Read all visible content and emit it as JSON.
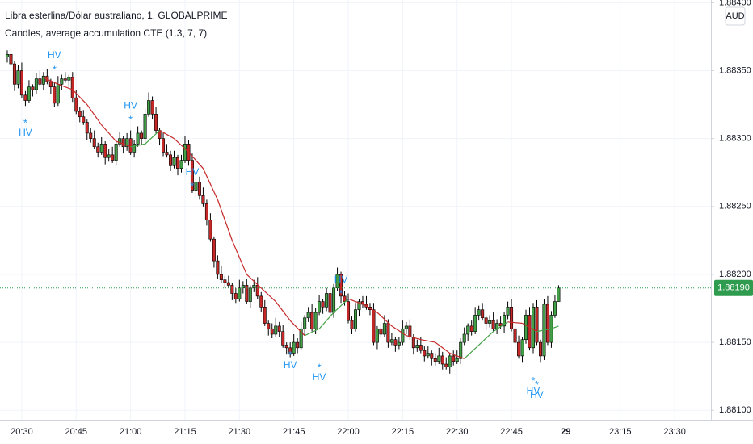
{
  "chart_data": {
    "type": "candlestick",
    "title": "Libra esterlina/Dólar australiano, 1, GLOBALPRIME",
    "subtitle": "Candles, average accumulation CTE (1.3, 7, 7)",
    "currency": "AUD",
    "up_color": "#43a047",
    "down_color": "#c62828",
    "grid": true,
    "xlim": [
      "20:24",
      "23:40"
    ],
    "xticks": [
      "20:30",
      "20:45",
      "21:00",
      "21:15",
      "21:30",
      "21:45",
      "22:00",
      "22:15",
      "22:30",
      "22:45",
      {
        "value": "23:00",
        "label": "29"
      },
      "23:15",
      "23:30"
    ],
    "ylim": [
      1.88093,
      1.88402
    ],
    "yticks": [
      {
        "value": 1.881,
        "label": "1.88100"
      },
      {
        "value": 1.8815,
        "label": "1.88150"
      },
      {
        "value": 1.882,
        "label": "1.88200"
      },
      {
        "value": 1.8825,
        "label": "1.88250"
      },
      {
        "value": 1.883,
        "label": "1.88300"
      },
      {
        "value": 1.8835,
        "label": "1.88350"
      },
      {
        "value": 1.884,
        "label": "1.88400"
      }
    ],
    "last_price": {
      "value": 1.8819,
      "label": "1.88190"
    },
    "last_price_color": "#2e9b4e",
    "x": [
      "20:26",
      "20:27",
      "20:28",
      "20:29",
      "20:30",
      "20:31",
      "20:32",
      "20:33",
      "20:34",
      "20:35",
      "20:36",
      "20:37",
      "20:38",
      "20:39",
      "20:40",
      "20:41",
      "20:42",
      "20:43",
      "20:44",
      "20:45",
      "20:46",
      "20:47",
      "20:48",
      "20:49",
      "20:50",
      "20:51",
      "20:52",
      "20:53",
      "20:54",
      "20:55",
      "20:56",
      "20:57",
      "20:58",
      "20:59",
      "21:00",
      "21:01",
      "21:02",
      "21:03",
      "21:04",
      "21:05",
      "21:06",
      "21:07",
      "21:08",
      "21:09",
      "21:10",
      "21:11",
      "21:12",
      "21:13",
      "21:14",
      "21:15",
      "21:16",
      "21:17",
      "21:18",
      "21:19",
      "21:20",
      "21:21",
      "21:22",
      "21:23",
      "21:24",
      "21:25",
      "21:26",
      "21:27",
      "21:28",
      "21:29",
      "21:30",
      "21:31",
      "21:32",
      "21:33",
      "21:34",
      "21:35",
      "21:36",
      "21:37",
      "21:38",
      "21:39",
      "21:40",
      "21:41",
      "21:42",
      "21:43",
      "21:44",
      "21:45",
      "21:46",
      "21:47",
      "21:48",
      "21:49",
      "21:50",
      "21:51",
      "21:52",
      "21:53",
      "21:54",
      "21:55",
      "21:56",
      "21:57",
      "21:58",
      "21:59",
      "22:00",
      "22:01",
      "22:02",
      "22:03",
      "22:04",
      "22:05",
      "22:06",
      "22:07",
      "22:08",
      "22:09",
      "22:10",
      "22:11",
      "22:12",
      "22:13",
      "22:14",
      "22:15",
      "22:16",
      "22:17",
      "22:18",
      "22:19",
      "22:20",
      "22:21",
      "22:22",
      "22:23",
      "22:24",
      "22:25",
      "22:26",
      "22:27",
      "22:28",
      "22:29",
      "22:30",
      "22:31",
      "22:32",
      "22:33",
      "22:34",
      "22:35",
      "22:36",
      "22:37",
      "22:38",
      "22:39",
      "22:40",
      "22:41",
      "22:42",
      "22:43",
      "22:44",
      "22:45",
      "22:46",
      "22:47",
      "22:48",
      "22:49",
      "22:50",
      "22:51",
      "22:52",
      "22:53",
      "22:54",
      "22:55",
      "22:56",
      "22:57",
      "22:58"
    ],
    "open": [
      1.8836,
      1.88362,
      1.88355,
      1.8834,
      1.8835,
      1.88332,
      1.88328,
      1.88338,
      1.88336,
      1.88344,
      1.8834,
      1.88346,
      1.88342,
      1.88338,
      1.88326,
      1.8834,
      1.88344,
      1.88343,
      1.88345,
      1.8833,
      1.8832,
      1.88316,
      1.88312,
      1.88304,
      1.883,
      1.88294,
      1.8829,
      1.88296,
      1.88286,
      1.88288,
      1.88284,
      1.88296,
      1.883,
      1.88294,
      1.883,
      1.8829,
      1.88296,
      1.88304,
      1.883,
      1.88318,
      1.88328,
      1.88318,
      1.88306,
      1.883,
      1.8829,
      1.88288,
      1.8828,
      1.88286,
      1.88278,
      1.88284,
      1.88296,
      1.88284,
      1.88262,
      1.88268,
      1.88258,
      1.88252,
      1.8824,
      1.88226,
      1.8821,
      1.882,
      1.88196,
      1.88194,
      1.88192,
      1.88186,
      1.88182,
      1.8819,
      1.88192,
      1.8818,
      1.8819,
      1.88192,
      1.88184,
      1.88176,
      1.88164,
      1.8816,
      1.88156,
      1.88162,
      1.88158,
      1.88148,
      1.88146,
      1.88142,
      1.8815,
      1.88146,
      1.8816,
      1.88168,
      1.88172,
      1.8816,
      1.88172,
      1.8818,
      1.88176,
      1.88186,
      1.88172,
      1.8819,
      1.882,
      1.88184,
      1.8818,
      1.88166,
      1.8816,
      1.88174,
      1.8818,
      1.88178,
      1.88176,
      1.88174,
      1.8815,
      1.8816,
      1.88156,
      1.88164,
      1.8815,
      1.88152,
      1.88148,
      1.8815,
      1.8816,
      1.88162,
      1.88154,
      1.88146,
      1.88148,
      1.88144,
      1.8814,
      1.88142,
      1.88138,
      1.88136,
      1.8814,
      1.88134,
      1.88132,
      1.8814,
      1.88136,
      1.88138,
      1.8815,
      1.88156,
      1.88162,
      1.88158,
      1.8817,
      1.88174,
      1.88168,
      1.88164,
      1.88166,
      1.8816,
      1.88164,
      1.88162,
      1.8817,
      1.88176,
      1.8816,
      1.8815,
      1.8814,
      1.88152,
      1.8817,
      1.88146,
      1.88176,
      1.8815,
      1.8814,
      1.88178,
      1.8815,
      1.8817,
      1.8818
    ],
    "high": [
      1.88365,
      1.88367,
      1.88357,
      1.88354,
      1.88356,
      1.88335,
      1.88343,
      1.8834,
      1.88348,
      1.8835,
      1.88349,
      1.88351,
      1.88344,
      1.88342,
      1.88346,
      1.88347,
      1.88349,
      1.88347,
      1.88349,
      1.88336,
      1.88323,
      1.88321,
      1.88314,
      1.88308,
      1.88306,
      1.88297,
      1.88301,
      1.88298,
      1.88292,
      1.88294,
      1.88299,
      1.88305,
      1.88302,
      1.88304,
      1.88306,
      1.88299,
      1.88309,
      1.88306,
      1.88322,
      1.88334,
      1.88331,
      1.88323,
      1.88308,
      1.88304,
      1.88296,
      1.88291,
      1.88291,
      1.88288,
      1.88288,
      1.88302,
      1.88299,
      1.88289,
      1.8827,
      1.88272,
      1.88264,
      1.88255,
      1.88245,
      1.88228,
      1.88214,
      1.88206,
      1.88199,
      1.88199,
      1.88194,
      1.8819,
      1.88196,
      1.88195,
      1.88197,
      1.88192,
      1.88196,
      1.88198,
      1.88187,
      1.88181,
      1.88166,
      1.88164,
      1.88168,
      1.88165,
      1.88163,
      1.8815,
      1.8815,
      1.88156,
      1.88153,
      1.88165,
      1.8817,
      1.88176,
      1.88178,
      1.88175,
      1.88185,
      1.88182,
      1.8819,
      1.88192,
      1.88193,
      1.88205,
      1.88202,
      1.88188,
      1.88186,
      1.88169,
      1.88179,
      1.88182,
      1.88184,
      1.88184,
      1.88179,
      1.88179,
      1.88162,
      1.88164,
      1.8817,
      1.88167,
      1.88157,
      1.88154,
      1.88154,
      1.88166,
      1.88165,
      1.88167,
      1.88156,
      1.88152,
      1.88154,
      1.88147,
      1.88147,
      1.88144,
      1.88142,
      1.88146,
      1.88143,
      1.88139,
      1.88142,
      1.88144,
      1.88144,
      1.88153,
      1.88161,
      1.88164,
      1.88166,
      1.88176,
      1.88177,
      1.88179,
      1.8817,
      1.8817,
      1.88172,
      1.88167,
      1.88169,
      1.88172,
      1.8818,
      1.88182,
      1.88163,
      1.88155,
      1.88154,
      1.88174,
      1.88176,
      1.88179,
      1.88181,
      1.88152,
      1.88182,
      1.88184,
      1.88173,
      1.88185,
      1.88192
    ],
    "low": [
      1.88356,
      1.88353,
      1.88335,
      1.88337,
      1.8833,
      1.88324,
      1.88326,
      1.88331,
      1.88333,
      1.88338,
      1.88336,
      1.8834,
      1.88333,
      1.88323,
      1.88324,
      1.88336,
      1.88341,
      1.88338,
      1.88327,
      1.88318,
      1.88312,
      1.8831,
      1.88299,
      1.88297,
      1.88292,
      1.88286,
      1.88288,
      1.88281,
      1.88283,
      1.88282,
      1.8828,
      1.88294,
      1.88289,
      1.88291,
      1.88288,
      1.88286,
      1.88294,
      1.88295,
      1.88297,
      1.88316,
      1.88314,
      1.88304,
      1.88295,
      1.88287,
      1.88286,
      1.88276,
      1.88278,
      1.88273,
      1.88275,
      1.88282,
      1.8828,
      1.8826,
      1.88257,
      1.88255,
      1.8825,
      1.88236,
      1.88224,
      1.88205,
      1.88197,
      1.88194,
      1.8819,
      1.8819,
      1.88181,
      1.88179,
      1.8818,
      1.88186,
      1.88178,
      1.88175,
      1.88187,
      1.88182,
      1.88172,
      1.88162,
      1.88155,
      1.88153,
      1.88154,
      1.88154,
      1.88146,
      1.88141,
      1.88139,
      1.8814,
      1.88142,
      1.88144,
      1.88155,
      1.88165,
      1.88158,
      1.88156,
      1.8817,
      1.88171,
      1.88173,
      1.8817,
      1.88168,
      1.88188,
      1.88179,
      1.88177,
      1.88164,
      1.88156,
      1.88158,
      1.88169,
      1.88175,
      1.88174,
      1.8817,
      1.88148,
      1.88145,
      1.88153,
      1.88154,
      1.88146,
      1.88148,
      1.88143,
      1.88145,
      1.88148,
      1.88156,
      1.88152,
      1.88141,
      1.88143,
      1.88142,
      1.88136,
      1.88138,
      1.88133,
      1.88133,
      1.88134,
      1.8813,
      1.8813,
      1.88127,
      1.88133,
      1.88134,
      1.88134,
      1.88148,
      1.88151,
      1.88155,
      1.88156,
      1.88166,
      1.88166,
      1.88159,
      1.88161,
      1.88158,
      1.88156,
      1.8816,
      1.88157,
      1.88167,
      1.88158,
      1.88146,
      1.88138,
      1.88135,
      1.88149,
      1.88144,
      1.88142,
      1.88148,
      1.88135,
      1.88137,
      1.88148,
      1.88146,
      1.88168,
      1.88183
    ],
    "close": [
      1.88362,
      1.88355,
      1.8834,
      1.8835,
      1.88332,
      1.88328,
      1.88338,
      1.88336,
      1.88344,
      1.8834,
      1.88346,
      1.88342,
      1.88338,
      1.88326,
      1.8834,
      1.88344,
      1.88343,
      1.88345,
      1.8833,
      1.8832,
      1.88316,
      1.88312,
      1.88304,
      1.883,
      1.88294,
      1.8829,
      1.88296,
      1.88286,
      1.88288,
      1.88284,
      1.88296,
      1.883,
      1.88294,
      1.883,
      1.8829,
      1.88296,
      1.88304,
      1.883,
      1.88318,
      1.88328,
      1.88318,
      1.88306,
      1.883,
      1.8829,
      1.88288,
      1.8828,
      1.88286,
      1.88278,
      1.88284,
      1.88296,
      1.88284,
      1.88262,
      1.88268,
      1.88258,
      1.88252,
      1.8824,
      1.88226,
      1.8821,
      1.882,
      1.88196,
      1.88194,
      1.88192,
      1.88186,
      1.88182,
      1.8819,
      1.88192,
      1.8818,
      1.8819,
      1.88192,
      1.88184,
      1.88176,
      1.88164,
      1.8816,
      1.88156,
      1.88162,
      1.88158,
      1.88148,
      1.88146,
      1.88142,
      1.8815,
      1.88146,
      1.8816,
      1.88168,
      1.88172,
      1.8816,
      1.88172,
      1.8818,
      1.88176,
      1.88186,
      1.88172,
      1.8819,
      1.882,
      1.88184,
      1.8818,
      1.88166,
      1.8816,
      1.88174,
      1.8818,
      1.88178,
      1.88176,
      1.88174,
      1.8815,
      1.8816,
      1.88156,
      1.88164,
      1.8815,
      1.88152,
      1.88148,
      1.8815,
      1.8816,
      1.88162,
      1.88154,
      1.88146,
      1.88148,
      1.88144,
      1.8814,
      1.88142,
      1.88138,
      1.88136,
      1.8814,
      1.88134,
      1.88132,
      1.8814,
      1.88136,
      1.88138,
      1.8815,
      1.88156,
      1.88162,
      1.88158,
      1.8817,
      1.88174,
      1.88168,
      1.88164,
      1.88166,
      1.8816,
      1.88164,
      1.88162,
      1.8817,
      1.88176,
      1.8816,
      1.8815,
      1.8814,
      1.88152,
      1.8817,
      1.88146,
      1.88176,
      1.8815,
      1.8814,
      1.88178,
      1.8815,
      1.8817,
      1.8818,
      1.8819
    ],
    "average": {
      "x": [
        "20:36",
        "20:40",
        "20:44",
        "20:48",
        "20:52",
        "20:56",
        "21:00",
        "21:04",
        "21:08",
        "21:12",
        "21:16",
        "21:20",
        "21:24",
        "21:28",
        "21:32",
        "21:36",
        "21:40",
        "21:44",
        "21:48",
        "21:52",
        "21:56",
        "22:00",
        "22:04",
        "22:08",
        "22:12",
        "22:16",
        "22:20",
        "22:24",
        "22:28",
        "22:32",
        "22:36",
        "22:40",
        "22:44",
        "22:48",
        "22:52",
        "22:56",
        "22:58"
      ],
      "values": [
        1.88345,
        1.8834,
        1.88336,
        1.88325,
        1.8831,
        1.88298,
        1.88294,
        1.88296,
        1.88306,
        1.883,
        1.8829,
        1.88278,
        1.88255,
        1.88225,
        1.882,
        1.8819,
        1.8818,
        1.88166,
        1.88155,
        1.8816,
        1.88172,
        1.88182,
        1.88178,
        1.88172,
        1.88162,
        1.88155,
        1.88152,
        1.8815,
        1.88142,
        1.88138,
        1.88148,
        1.88158,
        1.88165,
        1.88164,
        1.88158,
        1.8816,
        1.88162
      ]
    },
    "annotation_color": "#2196f3",
    "annotations": [
      {
        "x": "20:31",
        "y": 1.88304,
        "text": "HV",
        "marker": "*",
        "side": "below"
      },
      {
        "x": "20:39",
        "y": 1.88361,
        "text": "HV",
        "marker": "*",
        "side": "above"
      },
      {
        "x": "21:00",
        "y": 1.88324,
        "text": "HV",
        "marker": "*",
        "side": "above"
      },
      {
        "x": "21:17",
        "y": 1.88275,
        "text": "HV",
        "marker": "*",
        "side": "above"
      },
      {
        "x": "21:44",
        "y": 1.88133,
        "text": "HV",
        "marker": "*",
        "side": "below"
      },
      {
        "x": "21:52",
        "y": 1.88124,
        "text": "HV",
        "marker": "*",
        "side": "below"
      },
      {
        "x": "21:58",
        "y": 1.88196,
        "text": "HV",
        "marker": "*",
        "side": "above"
      },
      {
        "x": "22:51",
        "y": 1.88114,
        "text": "HV",
        "marker": "*",
        "side": "below"
      },
      {
        "x": "22:52",
        "y": 1.88111,
        "text": "HV",
        "marker": "*",
        "side": "below"
      }
    ]
  }
}
